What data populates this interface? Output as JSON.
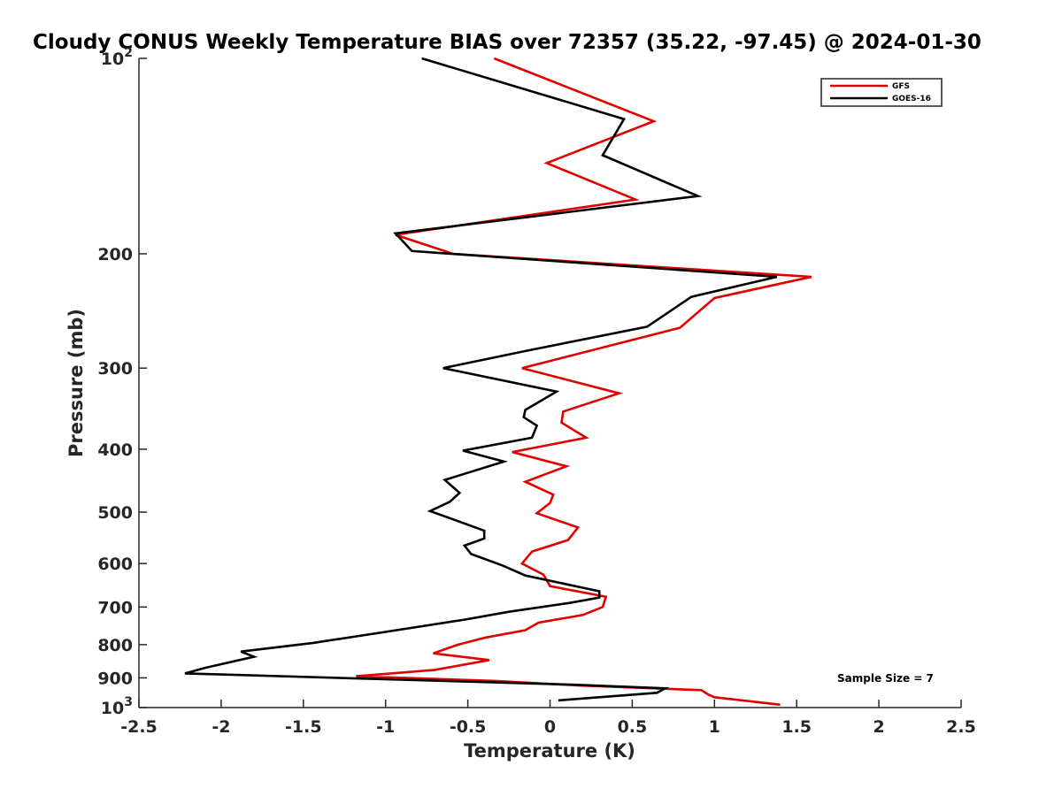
{
  "chart_data": {
    "type": "line",
    "title": "Cloudy CONUS Weekly Temperature BIAS over 72357 (35.22, -97.45) @ 2024-01-30",
    "xlabel": "Temperature (K)",
    "ylabel": "Pressure (mb)",
    "xlim": [
      -2.5,
      2.5
    ],
    "ylim": [
      100,
      1000
    ],
    "y_scale": "log",
    "y_reversed": true,
    "x_ticks": [
      -2.5,
      -2,
      -1.5,
      -1,
      -0.5,
      0,
      0.5,
      1,
      1.5,
      2,
      2.5
    ],
    "x_tick_labels": [
      "-2.5",
      "-2",
      "-1.5",
      "-1",
      "-0.5",
      "0",
      "0.5",
      "1",
      "1.5",
      "2",
      "2.5"
    ],
    "y_ticks": [
      {
        "value": 100,
        "base": "10",
        "exp": "2"
      },
      {
        "value": 200,
        "label": "200"
      },
      {
        "value": 300,
        "label": "300"
      },
      {
        "value": 400,
        "label": "400"
      },
      {
        "value": 500,
        "label": "500"
      },
      {
        "value": 600,
        "label": "600"
      },
      {
        "value": 700,
        "label": "700"
      },
      {
        "value": 800,
        "label": "800"
      },
      {
        "value": 900,
        "label": "900"
      },
      {
        "value": 1000,
        "base": "10",
        "exp": "3"
      }
    ],
    "grid": false,
    "legend_position": "top-right",
    "annotation": "Sample Size = 7",
    "series": [
      {
        "name": "GFS",
        "color": "#e00000",
        "points": [
          {
            "x": -0.34,
            "y": 100
          },
          {
            "x": 0.63,
            "y": 125
          },
          {
            "x": -0.02,
            "y": 145
          },
          {
            "x": 0.52,
            "y": 165
          },
          {
            "x": -0.94,
            "y": 187
          },
          {
            "x": -0.59,
            "y": 200
          },
          {
            "x": 1.59,
            "y": 217
          },
          {
            "x": 1.0,
            "y": 234
          },
          {
            "x": 0.79,
            "y": 260
          },
          {
            "x": -0.17,
            "y": 300
          },
          {
            "x": 0.42,
            "y": 328
          },
          {
            "x": 0.08,
            "y": 350
          },
          {
            "x": 0.07,
            "y": 364
          },
          {
            "x": 0.22,
            "y": 384
          },
          {
            "x": -0.23,
            "y": 404
          },
          {
            "x": 0.1,
            "y": 425
          },
          {
            "x": -0.15,
            "y": 449
          },
          {
            "x": 0.02,
            "y": 470
          },
          {
            "x": 0.0,
            "y": 484
          },
          {
            "x": -0.08,
            "y": 502
          },
          {
            "x": 0.17,
            "y": 528
          },
          {
            "x": 0.11,
            "y": 552
          },
          {
            "x": -0.11,
            "y": 575
          },
          {
            "x": -0.17,
            "y": 600
          },
          {
            "x": -0.04,
            "y": 624
          },
          {
            "x": 0.0,
            "y": 650
          },
          {
            "x": 0.34,
            "y": 675
          },
          {
            "x": 0.32,
            "y": 700
          },
          {
            "x": 0.2,
            "y": 720
          },
          {
            "x": -0.07,
            "y": 740
          },
          {
            "x": -0.15,
            "y": 760
          },
          {
            "x": -0.39,
            "y": 780
          },
          {
            "x": -0.56,
            "y": 800
          },
          {
            "x": -0.71,
            "y": 825
          },
          {
            "x": -0.37,
            "y": 845
          },
          {
            "x": -0.7,
            "y": 875
          },
          {
            "x": -1.18,
            "y": 895
          },
          {
            "x": -0.33,
            "y": 910
          },
          {
            "x": 0.18,
            "y": 925
          },
          {
            "x": 0.92,
            "y": 940
          },
          {
            "x": 0.96,
            "y": 954
          },
          {
            "x": 1.0,
            "y": 964
          },
          {
            "x": 1.4,
            "y": 990
          }
        ]
      },
      {
        "name": "GOES-16",
        "color": "#000000",
        "points": [
          {
            "x": -0.78,
            "y": 100
          },
          {
            "x": 0.45,
            "y": 124
          },
          {
            "x": 0.32,
            "y": 141
          },
          {
            "x": 0.9,
            "y": 163
          },
          {
            "x": -0.94,
            "y": 186
          },
          {
            "x": -0.84,
            "y": 198
          },
          {
            "x": 1.38,
            "y": 217
          },
          {
            "x": 0.86,
            "y": 233
          },
          {
            "x": 0.59,
            "y": 259
          },
          {
            "x": -0.14,
            "y": 282
          },
          {
            "x": -0.65,
            "y": 300
          },
          {
            "x": 0.04,
            "y": 326
          },
          {
            "x": -0.15,
            "y": 348
          },
          {
            "x": -0.16,
            "y": 357
          },
          {
            "x": -0.08,
            "y": 368
          },
          {
            "x": -0.11,
            "y": 384
          },
          {
            "x": -0.53,
            "y": 402
          },
          {
            "x": -0.28,
            "y": 418
          },
          {
            "x": -0.64,
            "y": 446
          },
          {
            "x": -0.55,
            "y": 467
          },
          {
            "x": -0.61,
            "y": 482
          },
          {
            "x": -0.73,
            "y": 498
          },
          {
            "x": -0.4,
            "y": 534
          },
          {
            "x": -0.4,
            "y": 549
          },
          {
            "x": -0.52,
            "y": 563
          },
          {
            "x": -0.48,
            "y": 580
          },
          {
            "x": -0.29,
            "y": 604
          },
          {
            "x": -0.15,
            "y": 626
          },
          {
            "x": 0.3,
            "y": 662
          },
          {
            "x": 0.3,
            "y": 677
          },
          {
            "x": 0.12,
            "y": 690
          },
          {
            "x": -0.25,
            "y": 712
          },
          {
            "x": -0.52,
            "y": 732
          },
          {
            "x": -1.02,
            "y": 766
          },
          {
            "x": -1.44,
            "y": 795
          },
          {
            "x": -1.88,
            "y": 820
          },
          {
            "x": -1.8,
            "y": 835
          },
          {
            "x": -2.1,
            "y": 869
          },
          {
            "x": -2.22,
            "y": 886
          },
          {
            "x": 0.13,
            "y": 922
          },
          {
            "x": 0.7,
            "y": 934
          },
          {
            "x": 0.65,
            "y": 949
          },
          {
            "x": 0.05,
            "y": 975
          }
        ]
      }
    ]
  }
}
